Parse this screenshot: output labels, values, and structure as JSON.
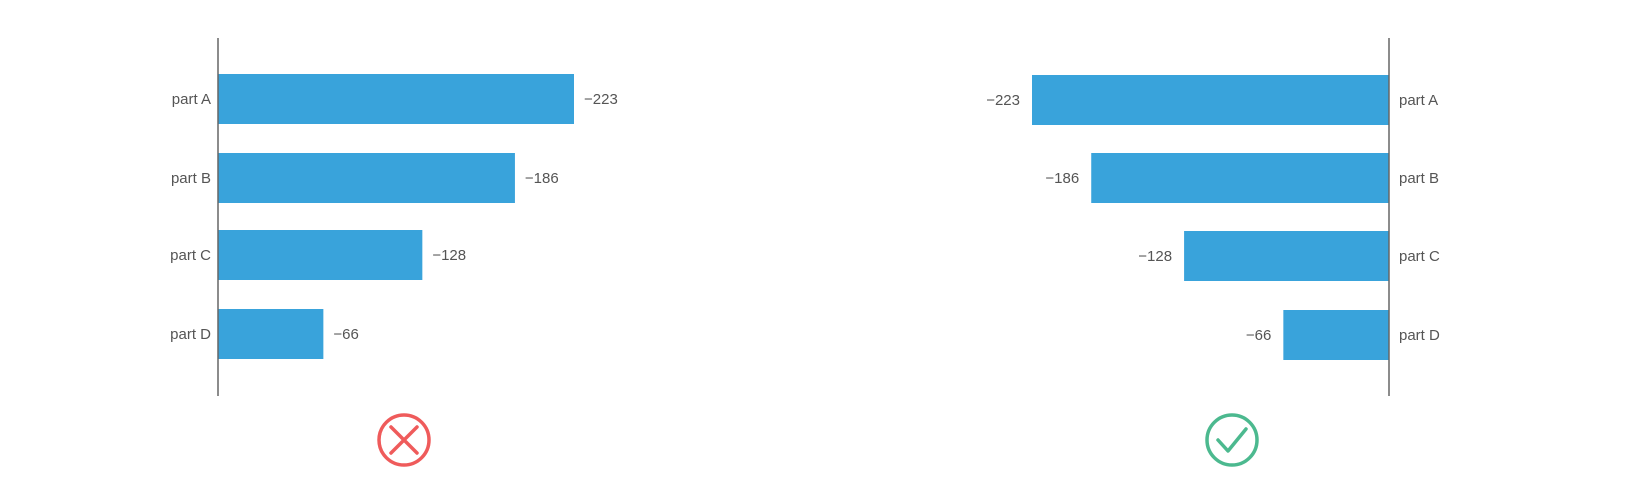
{
  "colors": {
    "bar": "#39a3db",
    "axis": "#666666",
    "wrong": "#ef5b5b",
    "right": "#4cb98f",
    "text": "#555555"
  },
  "chart_data": [
    {
      "id": "wrong",
      "type": "bar",
      "orientation": "horizontal",
      "bar_direction": "right",
      "categories": [
        "part A",
        "part B",
        "part C",
        "part D"
      ],
      "values": [
        -223,
        -186,
        -128,
        -66
      ],
      "value_labels": [
        "−223",
        "−186",
        "−128",
        "−66"
      ],
      "xlim": [
        0,
        -223
      ],
      "title": "",
      "xlabel": "",
      "ylabel": "",
      "grid": false,
      "verdict_icon": "cross-circle-icon"
    },
    {
      "id": "right",
      "type": "bar",
      "orientation": "horizontal",
      "bar_direction": "left",
      "categories": [
        "part A",
        "part B",
        "part C",
        "part D"
      ],
      "values": [
        -223,
        -186,
        -128,
        -66
      ],
      "value_labels": [
        "−223",
        "−186",
        "−128",
        "−66"
      ],
      "xlim": [
        -223,
        0
      ],
      "title": "",
      "xlabel": "",
      "ylabel": "",
      "grid": false,
      "verdict_icon": "check-circle-icon"
    }
  ]
}
